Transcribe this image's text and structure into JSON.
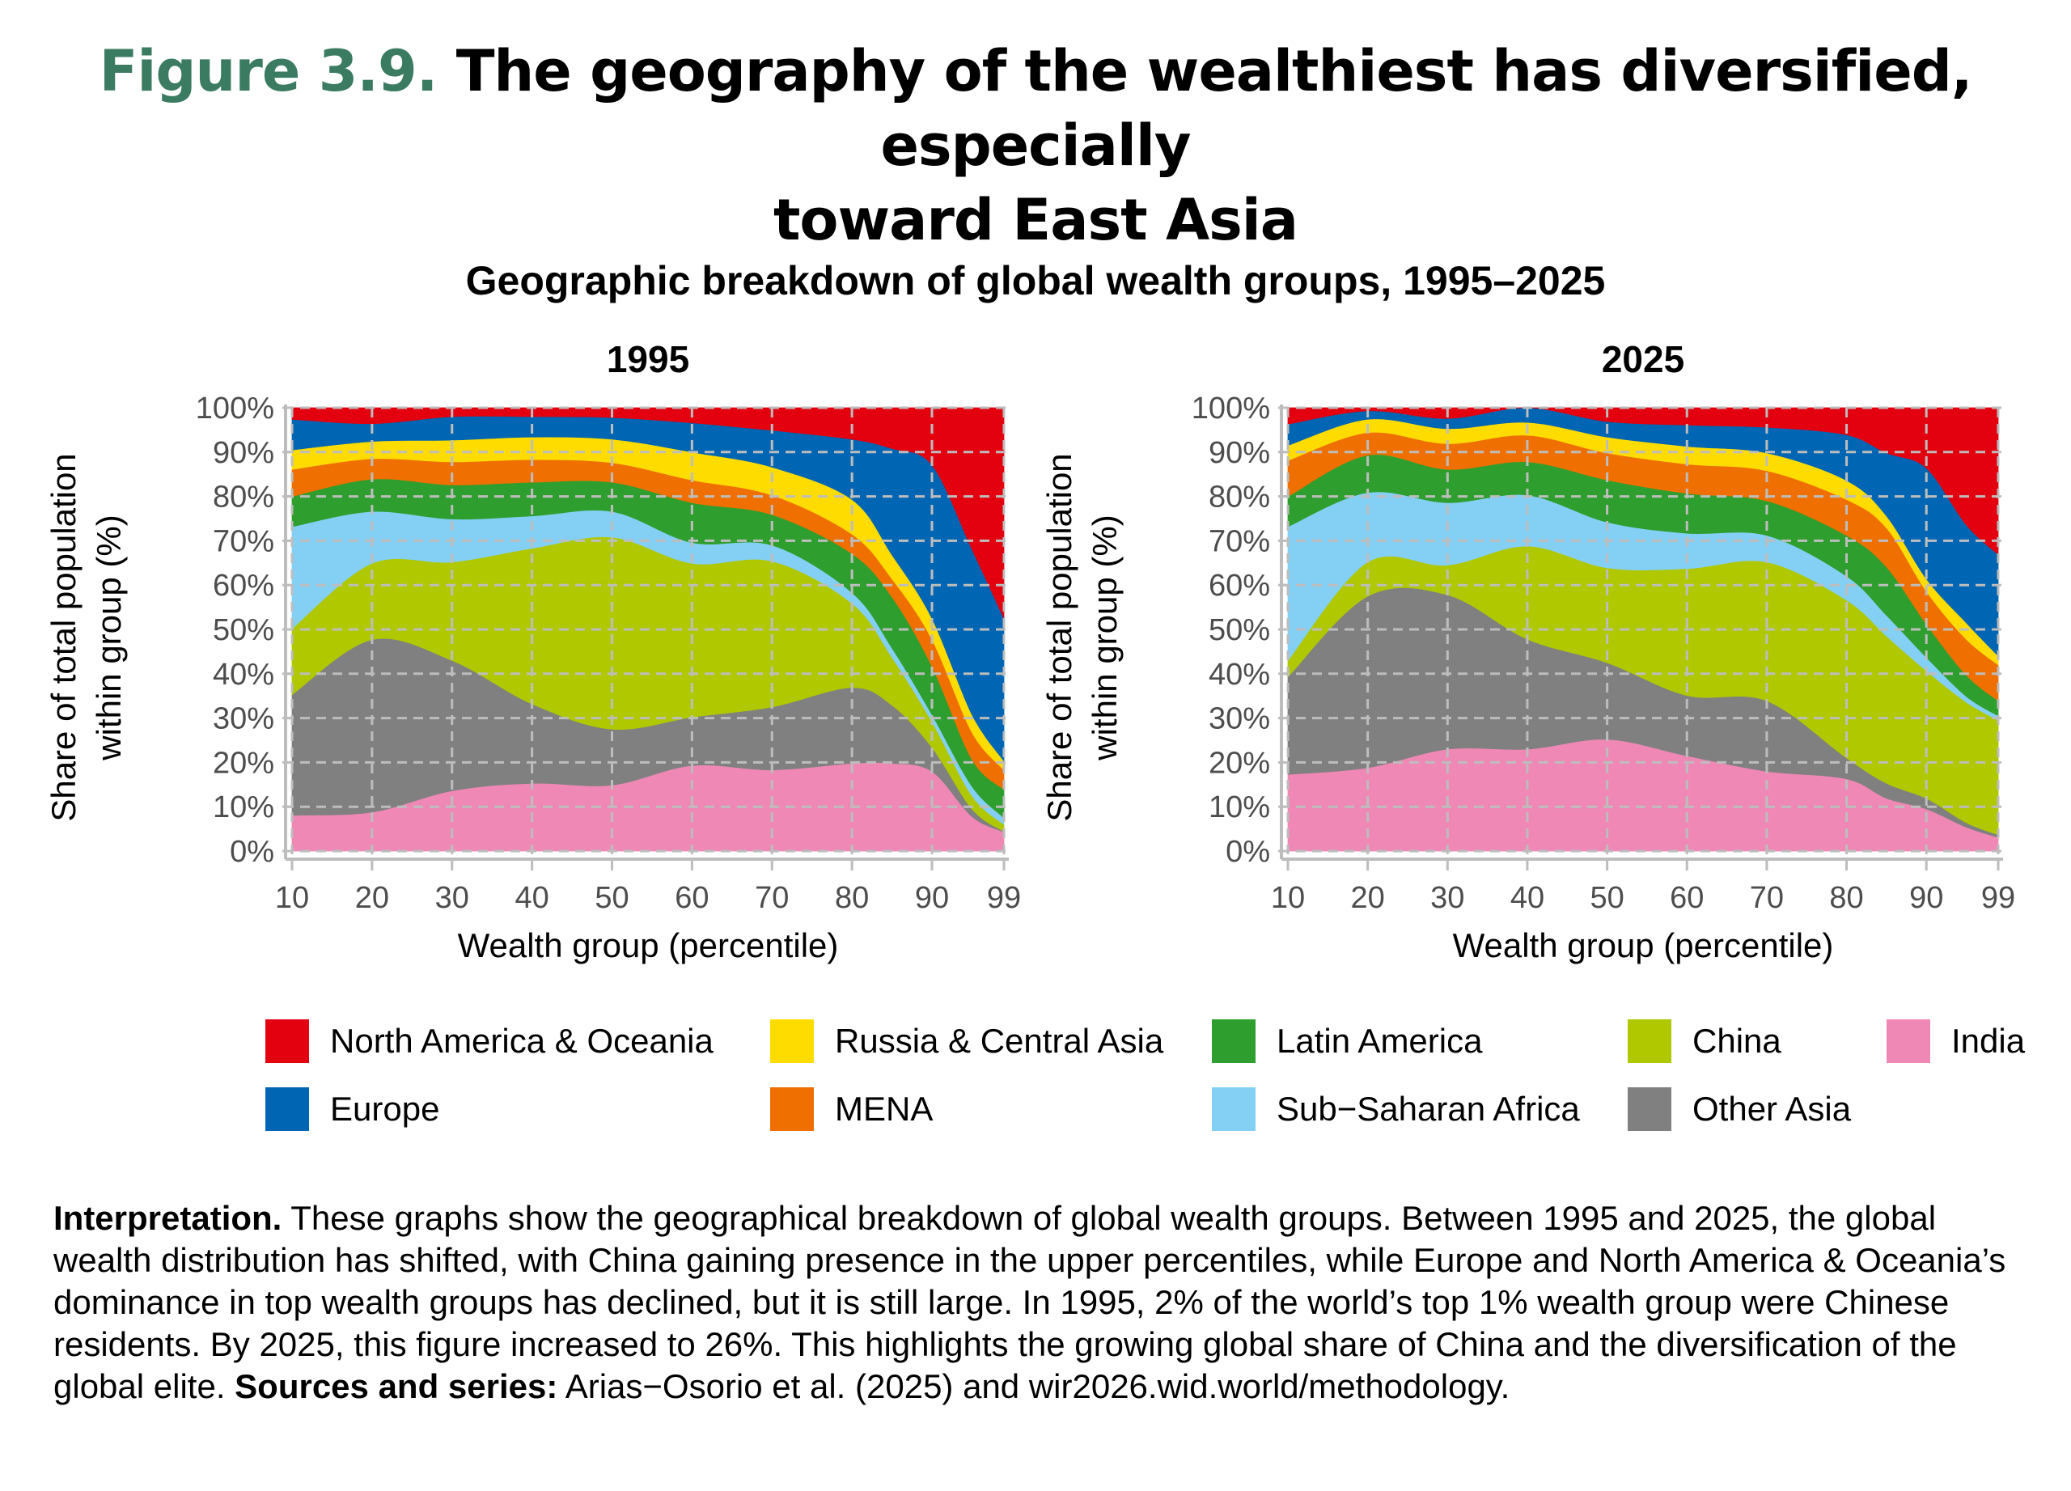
{
  "figure": {
    "label": "Figure 3.9.",
    "title": "The geography of the wealthiest has diversified, especially toward East Asia",
    "title_line1": "The geography of the wealthiest has diversified, especially",
    "title_line2": "toward East Asia",
    "subtitle": "Geographic breakdown of global wealth groups, 1995–2025"
  },
  "legend": [
    {
      "name": "North America & Oceania",
      "color": "#e3000f"
    },
    {
      "name": "Russia & Central Asia",
      "color": "#ffdc00"
    },
    {
      "name": "Latin America",
      "color": "#2e9e2e"
    },
    {
      "name": "China",
      "color": "#b0c800"
    },
    {
      "name": "India",
      "color": "#ef88b5"
    },
    {
      "name": "Europe",
      "color": "#0066b3"
    },
    {
      "name": "MENA",
      "color": "#ef7000"
    },
    {
      "name": "Sub−Saharan Africa",
      "color": "#84cff4"
    },
    {
      "name": "Other Asia",
      "color": "#808080"
    }
  ],
  "interpretation": {
    "label": "Interpretation.",
    "text": " These graphs show the geographical breakdown of global wealth groups. Between 1995 and 2025, the global wealth distribution has shifted, with China gaining presence in the upper percentiles, while Europe and North America & Oceania’s dominance in top wealth groups has declined, but it is still large. In 1995, 2% of the world’s top 1% wealth group were Chinese residents. By 2025, this figure increased to 26%. This highlights the growing global share of China and the diversification of the global elite. ",
    "sources_label": "Sources and series:",
    "sources_text": " Arias−Osorio et al. (2025) and wir2026.wid.world/methodology."
  },
  "chart_data": [
    {
      "type": "area",
      "stacked": true,
      "title": "1995",
      "xlabel": "Wealth group (percentile)",
      "ylabel": "Share of total population within group (%)",
      "ylabel_lines": [
        "Share of total population",
        "within group (%)"
      ],
      "xlim": [
        10,
        99
      ],
      "ylim": [
        0,
        100
      ],
      "xticks": [
        "10",
        "20",
        "30",
        "40",
        "50",
        "60",
        "70",
        "80",
        "90",
        "99"
      ],
      "yticks": [
        "0%",
        "10%",
        "20%",
        "30%",
        "40%",
        "50%",
        "60%",
        "70%",
        "80%",
        "90%",
        "100%"
      ],
      "grid": true,
      "x": [
        10,
        20,
        30,
        40,
        50,
        60,
        70,
        80,
        85,
        90,
        95,
        99
      ],
      "series": [
        {
          "name": "India",
          "color": "#ef88b5",
          "values": [
            8.1,
            8.8,
            13.6,
            15.3,
            14.9,
            19.3,
            18.3,
            19.8,
            19.8,
            18.0,
            7.8,
            4.3
          ]
        },
        {
          "name": "Other Asia",
          "color": "#808080",
          "values": [
            27.2,
            38.9,
            29.4,
            17.9,
            12.6,
            10.9,
            14.2,
            17.1,
            13.1,
            5.4,
            1.7,
            0.1
          ]
        },
        {
          "name": "China",
          "color": "#b0c800",
          "values": [
            14.9,
            17.2,
            22.2,
            35.1,
            43.3,
            34.7,
            32.9,
            19.0,
            10.8,
            5.8,
            3.0,
            1.6
          ]
        },
        {
          "name": "Sub−Saharan Africa",
          "color": "#84cff4",
          "values": [
            23.0,
            11.7,
            9.7,
            7.3,
            5.8,
            4.7,
            3.6,
            2.4,
            2.1,
            1.6,
            2.1,
            1.5
          ]
        },
        {
          "name": "Latin America",
          "color": "#2e9e2e",
          "values": [
            6.8,
            7.3,
            7.7,
            7.6,
            6.6,
            9.0,
            6.9,
            8.8,
            11.5,
            10.9,
            6.1,
            6.4
          ]
        },
        {
          "name": "MENA",
          "color": "#ef7000",
          "values": [
            6.1,
            4.6,
            5.2,
            5.1,
            4.4,
            5.1,
            4.4,
            4.4,
            4.1,
            6.1,
            6.1,
            4.4
          ]
        },
        {
          "name": "Russia & Central Asia",
          "color": "#ffdc00",
          "values": [
            4.4,
            3.9,
            4.9,
            5.1,
            5.3,
            6.3,
            6.3,
            7.8,
            5.4,
            4.7,
            4.0,
            2.0
          ]
        },
        {
          "name": "Europe",
          "color": "#0066b3",
          "values": [
            6.9,
            4.0,
            5.3,
            4.6,
            4.9,
            6.6,
            8.3,
            13.6,
            24.0,
            34.6,
            37.3,
            32.2
          ]
        },
        {
          "name": "North America & Oceania",
          "color": "#e3000f",
          "values": [
            2.6,
            3.6,
            2.0,
            2.0,
            2.2,
            3.4,
            5.1,
            7.1,
            9.2,
            12.9,
            31.9,
            47.5
          ]
        }
      ]
    },
    {
      "type": "area",
      "stacked": true,
      "title": "2025",
      "xlabel": "Wealth group (percentile)",
      "ylabel": "Share of total population within group (%)",
      "ylabel_lines": [
        "Share of total population",
        "within group (%)"
      ],
      "xlim": [
        10,
        99
      ],
      "ylim": [
        0,
        100
      ],
      "xticks": [
        "10",
        "20",
        "30",
        "40",
        "50",
        "60",
        "70",
        "80",
        "90",
        "99"
      ],
      "yticks": [
        "0%",
        "10%",
        "20%",
        "30%",
        "40%",
        "50%",
        "60%",
        "70%",
        "80%",
        "90%",
        "100%"
      ],
      "grid": true,
      "x": [
        10,
        20,
        30,
        40,
        50,
        60,
        70,
        80,
        85,
        90,
        95,
        99
      ],
      "series": [
        {
          "name": "India",
          "color": "#ef88b5",
          "values": [
            17.3,
            18.8,
            23.0,
            23.0,
            25.2,
            21.5,
            18.0,
            16.3,
            11.9,
            9.5,
            5.4,
            3.1
          ]
        },
        {
          "name": "Other Asia",
          "color": "#808080",
          "values": [
            22.0,
            38.7,
            34.8,
            24.8,
            17.3,
            13.6,
            15.9,
            4.7,
            3.4,
            2.4,
            1.0,
            0.6
          ]
        },
        {
          "name": "China",
          "color": "#b0c800",
          "values": [
            3.7,
            7.7,
            6.7,
            21.0,
            21.4,
            28.6,
            31.3,
            35.6,
            33.2,
            28.8,
            27.2,
            25.8
          ]
        },
        {
          "name": "Sub−Saharan Africa",
          "color": "#84cff4",
          "values": [
            30.2,
            15.7,
            14.1,
            11.5,
            10.3,
            8.0,
            6.0,
            5.4,
            4.7,
            3.0,
            1.3,
            1.0
          ]
        },
        {
          "name": "Latin America",
          "color": "#2e9e2e",
          "values": [
            6.8,
            8.4,
            7.5,
            7.5,
            9.5,
            9.0,
            7.8,
            9.2,
            10.9,
            7.5,
            4.8,
            3.4
          ]
        },
        {
          "name": "MENA",
          "color": "#ef7000",
          "values": [
            8.1,
            5.1,
            5.8,
            6.0,
            6.1,
            6.6,
            6.8,
            8.1,
            8.8,
            7.4,
            8.1,
            8.1
          ]
        },
        {
          "name": "Russia & Central Asia",
          "color": "#ffdc00",
          "values": [
            3.4,
            3.0,
            3.4,
            2.9,
            3.6,
            4.0,
            4.0,
            4.3,
            2.7,
            2.8,
            3.7,
            2.0
          ]
        },
        {
          "name": "Europe",
          "color": "#0066b3",
          "values": [
            4.8,
            1.9,
            2.3,
            3.3,
            3.5,
            4.8,
            5.8,
            10.3,
            14.2,
            25.0,
            22.1,
            22.9
          ]
        },
        {
          "name": "North America & Oceania",
          "color": "#e3000f",
          "values": [
            3.7,
            0.7,
            2.4,
            0.0,
            3.1,
            3.9,
            4.4,
            6.1,
            10.2,
            13.6,
            26.4,
            33.1
          ]
        }
      ]
    }
  ]
}
